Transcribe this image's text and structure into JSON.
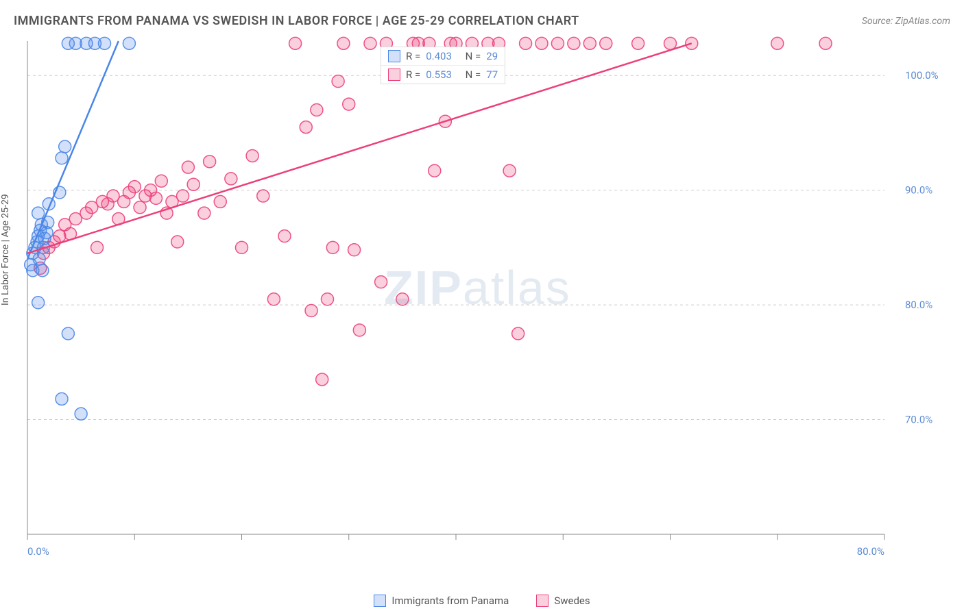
{
  "title": "IMMIGRANTS FROM PANAMA VS SWEDISH IN LABOR FORCE | AGE 25-29 CORRELATION CHART",
  "source": "Source: ZipAtlas.com",
  "watermark_bold": "ZIP",
  "watermark_rest": "atlas",
  "y_axis_label": "In Labor Force | Age 25-29",
  "chart": {
    "type": "scatter",
    "background_color": "#ffffff",
    "grid_color": "#cccccc",
    "axis_color": "#888888",
    "text_color": "#555555",
    "tick_label_color": "#5B8BD4",
    "xlim": [
      0,
      80
    ],
    "ylim": [
      60,
      103
    ],
    "x_ticks": [
      0,
      10,
      20,
      30,
      40,
      50,
      60,
      70,
      80
    ],
    "x_tick_labels": {
      "0": "0.0%",
      "80": "80.0%"
    },
    "y_ticks": [
      70,
      80,
      90,
      100
    ],
    "y_tick_labels": {
      "70": "70.0%",
      "80": "80.0%",
      "90": "90.0%",
      "100": "100.0%"
    },
    "marker_radius": 9,
    "marker_fill_opacity": 0.25,
    "marker_stroke_opacity": 0.9,
    "line_width": 2.5,
    "series": [
      {
        "name": "Immigrants from Panama",
        "color": "#4A86E8",
        "R": "0.403",
        "N": "29",
        "trend": {
          "x1": 0,
          "y1": 84,
          "x2": 8.5,
          "y2": 103
        },
        "points": [
          [
            0.3,
            83.5
          ],
          [
            0.5,
            84.5
          ],
          [
            0.7,
            85.0
          ],
          [
            0.9,
            85.5
          ],
          [
            1.0,
            86.0
          ],
          [
            1.2,
            86.5
          ],
          [
            1.3,
            87.0
          ],
          [
            1.5,
            85.0
          ],
          [
            1.6,
            85.8
          ],
          [
            1.8,
            86.3
          ],
          [
            1.9,
            87.2
          ],
          [
            2.0,
            88.8
          ],
          [
            1.0,
            88.0
          ],
          [
            1.1,
            84.0
          ],
          [
            1.4,
            83.0
          ],
          [
            3.0,
            89.8
          ],
          [
            3.2,
            92.8
          ],
          [
            3.5,
            93.8
          ],
          [
            3.8,
            102.8
          ],
          [
            4.5,
            102.8
          ],
          [
            5.5,
            102.8
          ],
          [
            6.3,
            102.8
          ],
          [
            7.2,
            102.8
          ],
          [
            9.5,
            102.8
          ],
          [
            1.0,
            80.2
          ],
          [
            3.8,
            77.5
          ],
          [
            3.2,
            71.8
          ],
          [
            5.0,
            70.5
          ],
          [
            0.5,
            83.0
          ]
        ]
      },
      {
        "name": "Swedes",
        "color": "#EC407A",
        "R": "0.553",
        "N": "77",
        "trend": {
          "x1": 0,
          "y1": 84.5,
          "x2": 62,
          "y2": 102.8
        },
        "points": [
          [
            1.2,
            83.2
          ],
          [
            1.5,
            84.5
          ],
          [
            2.0,
            85.0
          ],
          [
            2.5,
            85.5
          ],
          [
            3.0,
            86.0
          ],
          [
            3.5,
            87.0
          ],
          [
            4.0,
            86.2
          ],
          [
            4.5,
            87.5
          ],
          [
            5.5,
            88.0
          ],
          [
            6.0,
            88.5
          ],
          [
            6.5,
            85.0
          ],
          [
            7.0,
            89.0
          ],
          [
            7.5,
            88.8
          ],
          [
            8.0,
            89.5
          ],
          [
            8.5,
            87.5
          ],
          [
            9.0,
            89.0
          ],
          [
            9.5,
            89.8
          ],
          [
            10.0,
            90.3
          ],
          [
            10.5,
            88.5
          ],
          [
            11.0,
            89.5
          ],
          [
            11.5,
            90.0
          ],
          [
            12.0,
            89.3
          ],
          [
            12.5,
            90.8
          ],
          [
            13.0,
            88.0
          ],
          [
            13.5,
            89.0
          ],
          [
            14.0,
            85.5
          ],
          [
            14.5,
            89.5
          ],
          [
            15.0,
            92.0
          ],
          [
            15.5,
            90.5
          ],
          [
            16.5,
            88.0
          ],
          [
            17.0,
            92.5
          ],
          [
            18.0,
            89.0
          ],
          [
            19.0,
            91.0
          ],
          [
            20.0,
            85.0
          ],
          [
            21.0,
            93.0
          ],
          [
            22.0,
            89.5
          ],
          [
            23.0,
            80.5
          ],
          [
            24.0,
            86.0
          ],
          [
            25.0,
            102.8
          ],
          [
            26.0,
            95.5
          ],
          [
            26.5,
            79.5
          ],
          [
            27.0,
            97.0
          ],
          [
            28.0,
            80.5
          ],
          [
            28.5,
            85.0
          ],
          [
            27.5,
            73.5
          ],
          [
            29.0,
            99.5
          ],
          [
            29.5,
            102.8
          ],
          [
            30.0,
            97.5
          ],
          [
            30.5,
            84.8
          ],
          [
            31.0,
            77.8
          ],
          [
            32.0,
            102.8
          ],
          [
            33.0,
            82.0
          ],
          [
            33.5,
            102.8
          ],
          [
            35.0,
            80.5
          ],
          [
            36.0,
            102.8
          ],
          [
            36.5,
            102.8
          ],
          [
            37.5,
            102.8
          ],
          [
            38.0,
            91.7
          ],
          [
            39.0,
            96.0
          ],
          [
            39.5,
            102.8
          ],
          [
            40.0,
            102.8
          ],
          [
            41.5,
            102.8
          ],
          [
            43.0,
            102.8
          ],
          [
            44.0,
            102.8
          ],
          [
            45.0,
            91.7
          ],
          [
            45.8,
            77.5
          ],
          [
            46.5,
            102.8
          ],
          [
            48.0,
            102.8
          ],
          [
            49.5,
            102.8
          ],
          [
            51.0,
            102.8
          ],
          [
            52.5,
            102.8
          ],
          [
            54.0,
            102.8
          ],
          [
            57.0,
            102.8
          ],
          [
            60.0,
            102.8
          ],
          [
            62.0,
            102.8
          ],
          [
            70.0,
            102.8
          ],
          [
            74.5,
            102.8
          ]
        ]
      }
    ],
    "legend_bottom": [
      {
        "label": "Immigrants from Panama",
        "color": "#4A86E8"
      },
      {
        "label": "Swedes",
        "color": "#EC407A"
      }
    ]
  }
}
